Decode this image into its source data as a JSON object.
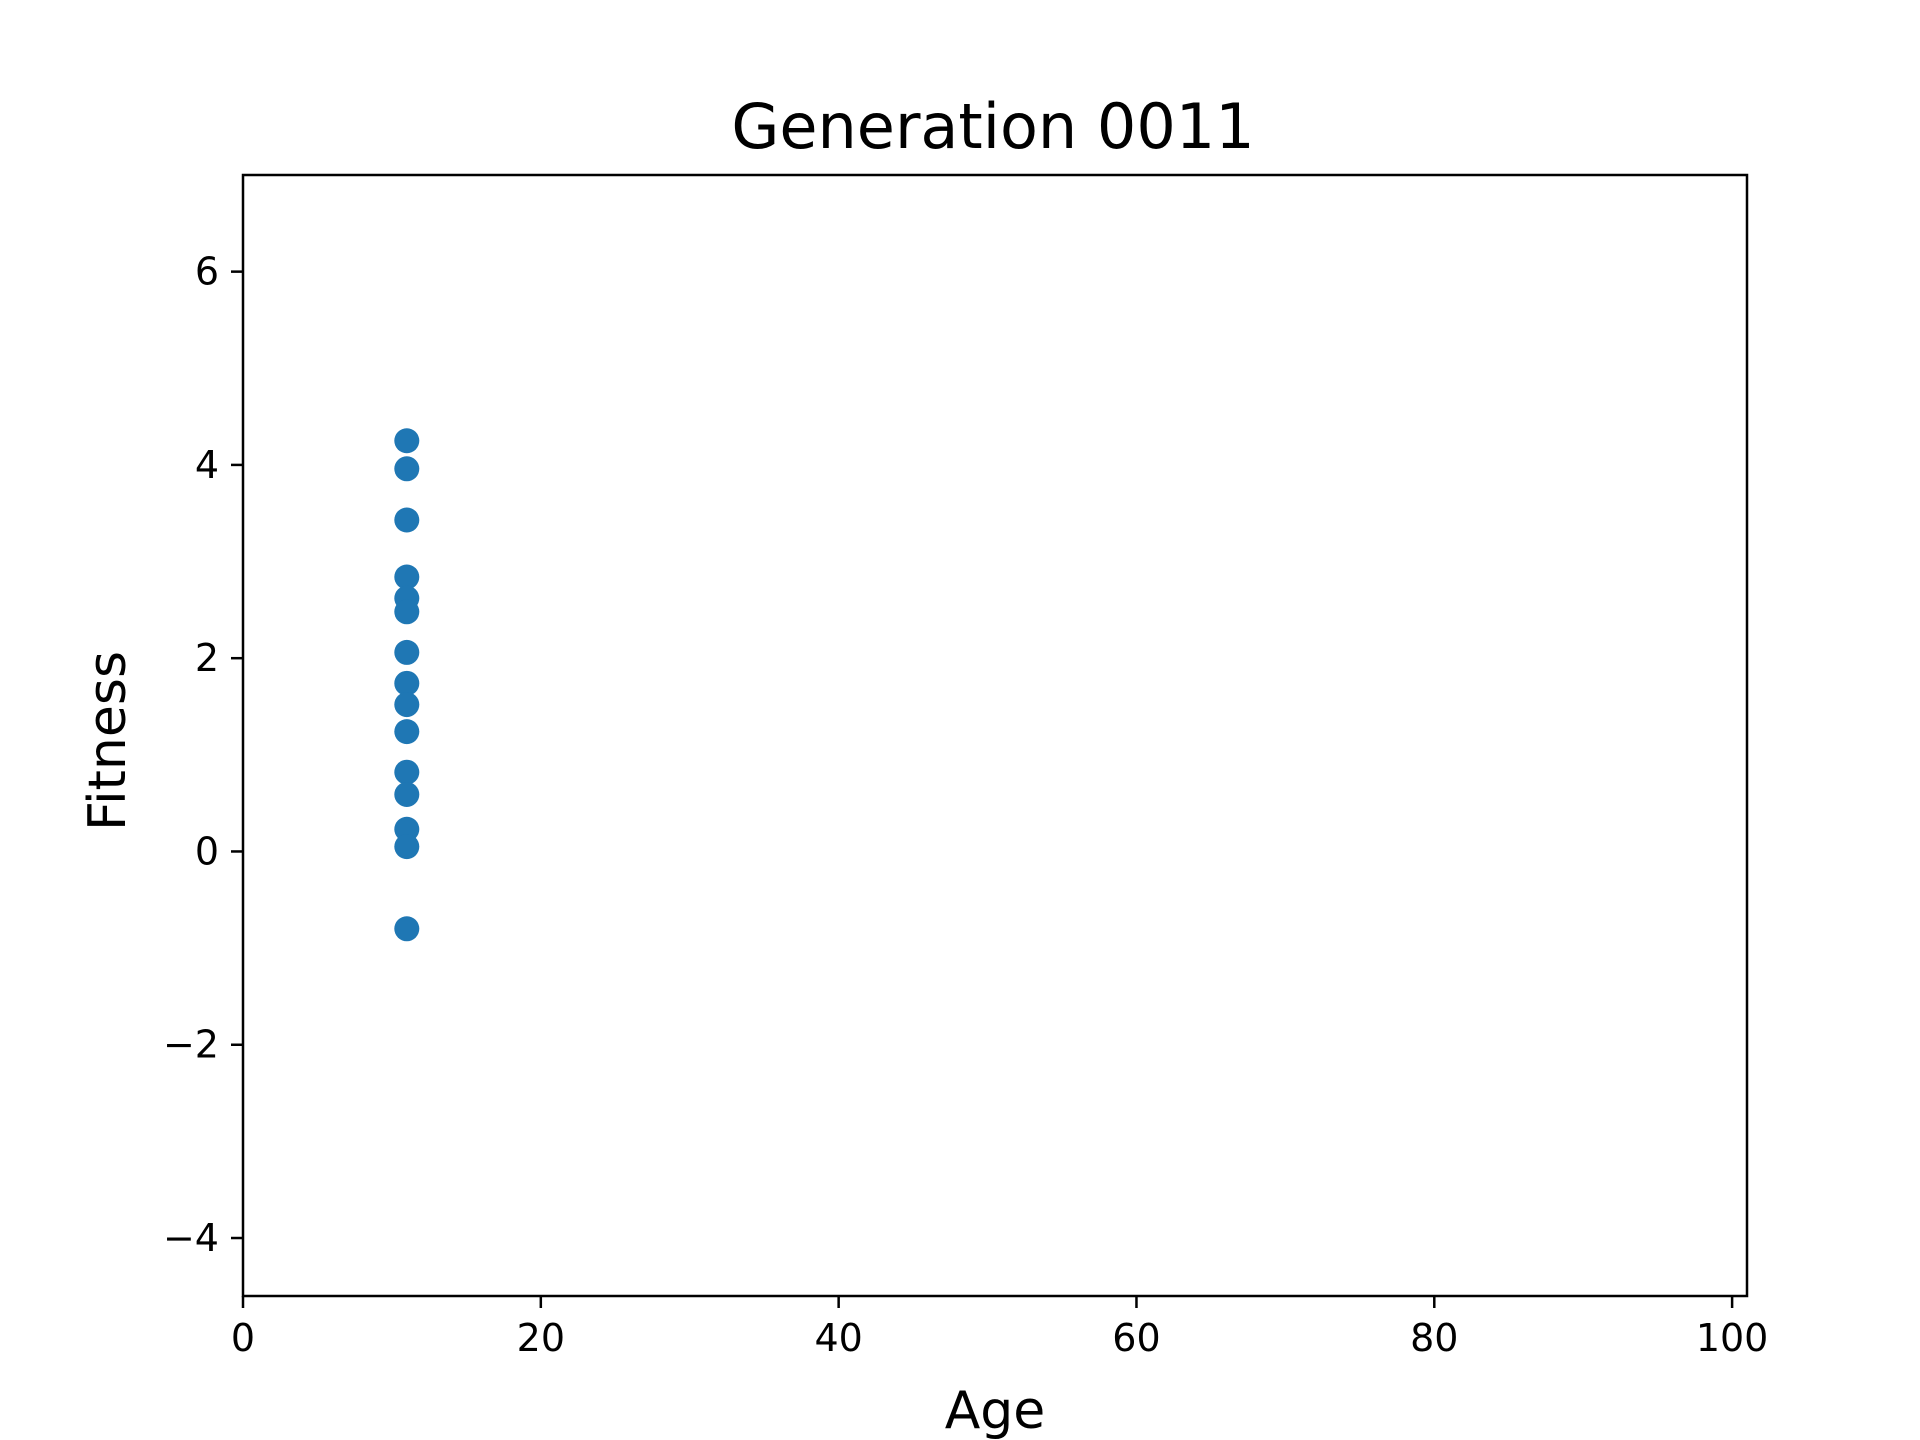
{
  "chart_data": {
    "type": "scatter",
    "title": "Generation 0011",
    "xlabel": "Age",
    "ylabel": "Fitness",
    "xlim": [
      0,
      101
    ],
    "ylim": [
      -4.6,
      7.0
    ],
    "xticks": [
      0,
      20,
      40,
      60,
      80,
      100
    ],
    "yticks": [
      -4,
      -2,
      0,
      2,
      4,
      6
    ],
    "xtick_labels": [
      "0",
      "20",
      "40",
      "60",
      "80",
      "100"
    ],
    "ytick_labels": [
      "−4",
      "−2",
      "0",
      "2",
      "4",
      "6"
    ],
    "grid": false,
    "legend": "none",
    "marker_color": "#1f77b4",
    "points": [
      {
        "x": 11,
        "y": 4.25
      },
      {
        "x": 11,
        "y": 3.96
      },
      {
        "x": 11,
        "y": 3.43
      },
      {
        "x": 11,
        "y": 2.84
      },
      {
        "x": 11,
        "y": 2.62
      },
      {
        "x": 11,
        "y": 2.48
      },
      {
        "x": 11,
        "y": 2.06
      },
      {
        "x": 11,
        "y": 1.74
      },
      {
        "x": 11,
        "y": 1.52
      },
      {
        "x": 11,
        "y": 1.24
      },
      {
        "x": 11,
        "y": 0.82
      },
      {
        "x": 11,
        "y": 0.59
      },
      {
        "x": 11,
        "y": 0.23
      },
      {
        "x": 11,
        "y": 0.05
      },
      {
        "x": 11,
        "y": -0.8
      }
    ]
  }
}
